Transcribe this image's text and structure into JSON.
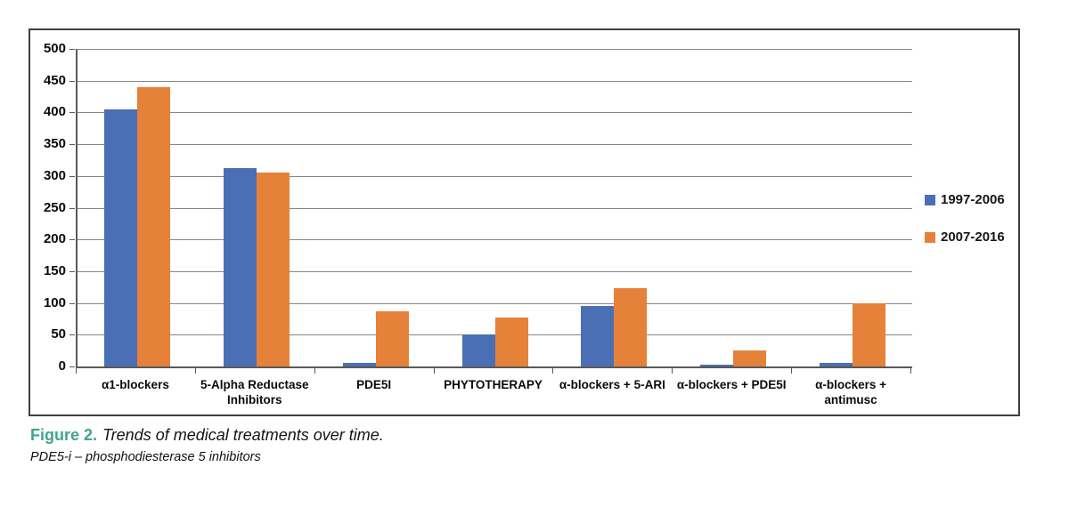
{
  "figure": {
    "label": "Figure 2.",
    "title": "Trends of medical treatments over time.",
    "footnote": "PDE5-i – phosphodiesterase 5 inhibitors",
    "label_color": "#3fa491"
  },
  "chart_data": {
    "type": "bar",
    "categories": [
      "α1-blockers",
      "5-Alpha Reductase Inhibitors",
      "PDE5I",
      "PHYTOTHERAPY",
      "α-blockers + 5-ARI",
      "α-blockers + PDE5I",
      "α-blockers + antimusc"
    ],
    "series": [
      {
        "name": "1997-2006",
        "color": "#4a6fb5",
        "values": [
          405,
          312,
          5,
          50,
          95,
          3,
          5
        ]
      },
      {
        "name": "2007-2016",
        "color": "#e6813a",
        "values": [
          440,
          305,
          87,
          77,
          123,
          25,
          100
        ]
      }
    ],
    "title": "",
    "xlabel": "",
    "ylabel": "",
    "ylim": [
      0,
      500
    ],
    "ytick_step": 50,
    "grid": true,
    "legend_position": "right",
    "grid_color": "#868686",
    "axis_color": "#595959"
  }
}
